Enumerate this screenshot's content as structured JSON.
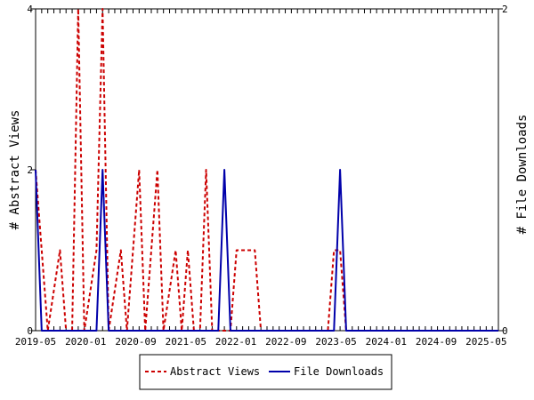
{
  "chart_data": {
    "type": "line",
    "xlabel": "",
    "ylabel_left": "# Abstract Views",
    "ylabel_right": "# File Downloads",
    "x_ticks": [
      "2019-05",
      "2020-01",
      "2020-09",
      "2021-05",
      "2022-01",
      "2022-09",
      "2023-05",
      "2024-01",
      "2024-09",
      "2025-05"
    ],
    "y_left": {
      "min": 0,
      "max": 4,
      "ticks": [
        "0",
        "2",
        "4"
      ]
    },
    "y_right": {
      "min": 0,
      "max": 2,
      "ticks": [
        "0",
        "2"
      ]
    },
    "x_count": 77,
    "series": [
      {
        "name": "Abstract Views",
        "axis": "left",
        "color": "#cc0000",
        "style": "dashed",
        "values": [
          2,
          1,
          0,
          0.5,
          1,
          0,
          0,
          4,
          0,
          0.5,
          1,
          4,
          0,
          0.5,
          1,
          0,
          1,
          2,
          0,
          1,
          2,
          0,
          0.5,
          1,
          0,
          1,
          0,
          0,
          2,
          0,
          0,
          0,
          0,
          1,
          1,
          1,
          1,
          0,
          0,
          0,
          0,
          0,
          0,
          0,
          0,
          0,
          0,
          0,
          0,
          1,
          1,
          0,
          0,
          0,
          0,
          0,
          0,
          0,
          0,
          0,
          0,
          0,
          0,
          0,
          0,
          0,
          0,
          0,
          0,
          0,
          0,
          0,
          0,
          0,
          0,
          0,
          0
        ]
      },
      {
        "name": "File Downloads",
        "axis": "right",
        "color": "#0000aa",
        "style": "solid",
        "values": [
          1,
          0,
          0,
          0,
          0,
          0,
          0,
          0,
          0,
          0,
          0,
          1,
          0,
          0,
          0,
          0,
          0,
          0,
          0,
          0,
          0,
          0,
          0,
          0,
          0,
          0,
          0,
          0,
          0,
          0,
          0,
          1,
          0,
          0,
          0,
          0,
          0,
          0,
          0,
          0,
          0,
          0,
          0,
          0,
          0,
          0,
          0,
          0,
          0,
          0,
          1,
          0,
          0,
          0,
          0,
          0,
          0,
          0,
          0,
          0,
          0,
          0,
          0,
          0,
          0,
          0,
          0,
          0,
          0,
          0,
          0,
          0,
          0,
          0,
          0,
          0,
          0
        ]
      }
    ],
    "legend_position": "bottom"
  }
}
